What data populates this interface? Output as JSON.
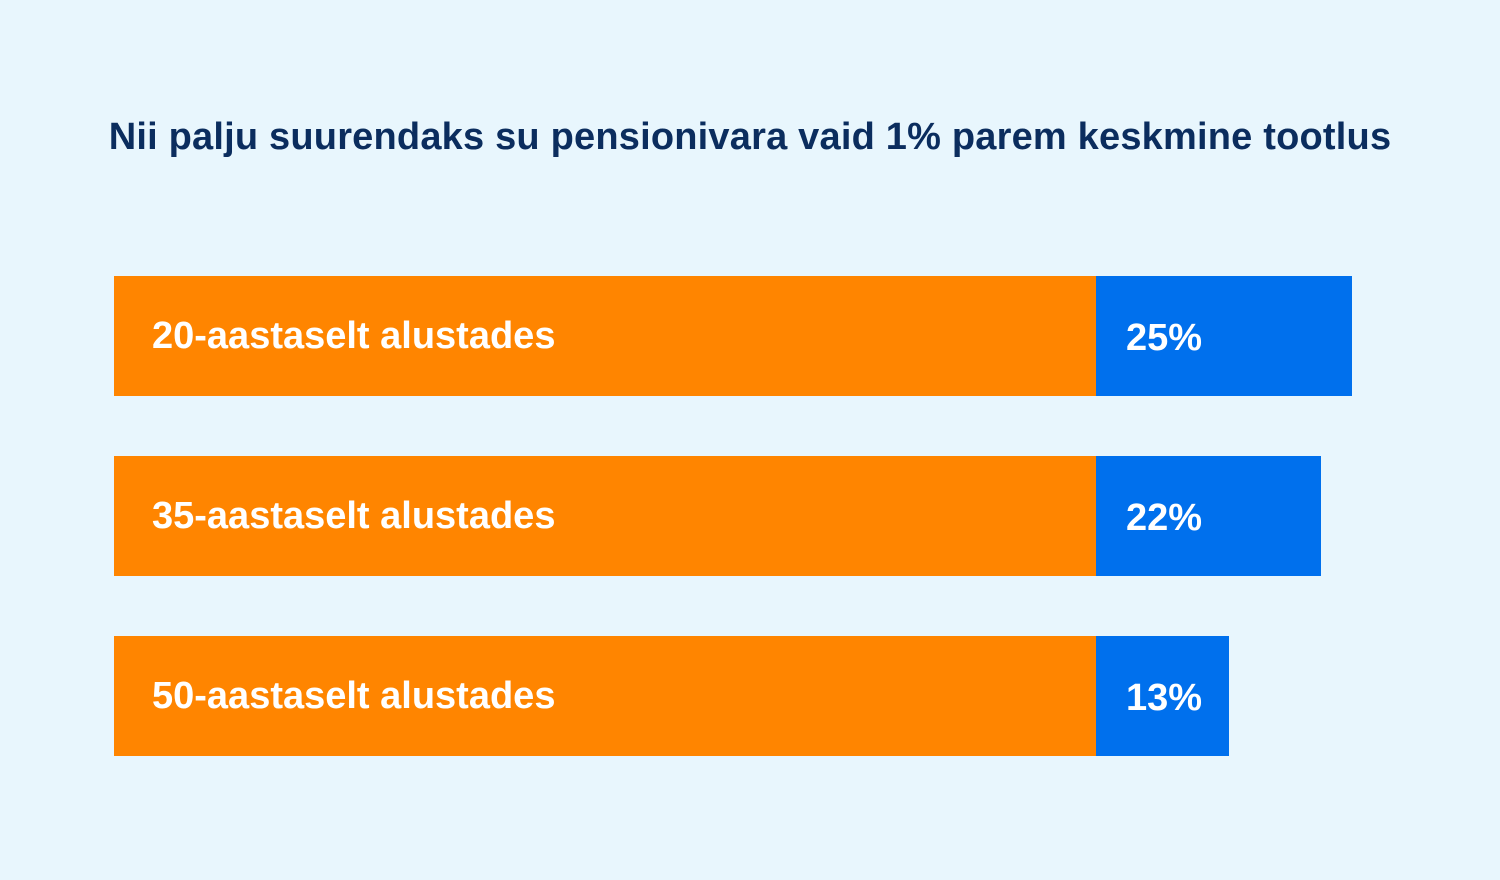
{
  "chart_data": {
    "type": "bar",
    "title": "Nii palju suurendaks su pensionivara vaid 1% parem keskmine tootlus",
    "categories": [
      "20-aastaselt alustades",
      "35-aastaselt alustades",
      "50-aastaselt alustades"
    ],
    "values": [
      25,
      22,
      13
    ],
    "value_labels": [
      "25%",
      "22%",
      "13%"
    ],
    "colors": {
      "base": "#ff8500",
      "gain": "#0070ed",
      "title": "#0b2d5e",
      "background": "#e8f6fd"
    }
  }
}
